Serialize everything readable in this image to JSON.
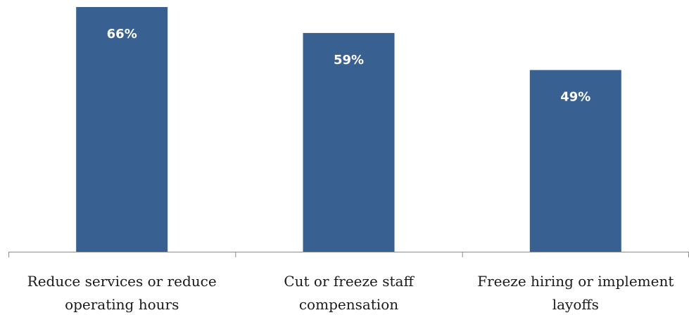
{
  "chart_data": {
    "type": "bar",
    "categories": [
      [
        "Reduce services or reduce",
        "operating hours"
      ],
      [
        "Cut or freeze staff",
        "compensation"
      ],
      [
        "Freeze hiring or implement",
        "layoffs"
      ]
    ],
    "values": [
      66,
      59,
      49
    ],
    "data_labels": [
      "66%",
      "59%",
      "49%"
    ],
    "title": "",
    "xlabel": "",
    "ylabel": "",
    "ylim": [
      0,
      66
    ],
    "grid": false,
    "legend": "none",
    "bar_color": "#386090"
  }
}
